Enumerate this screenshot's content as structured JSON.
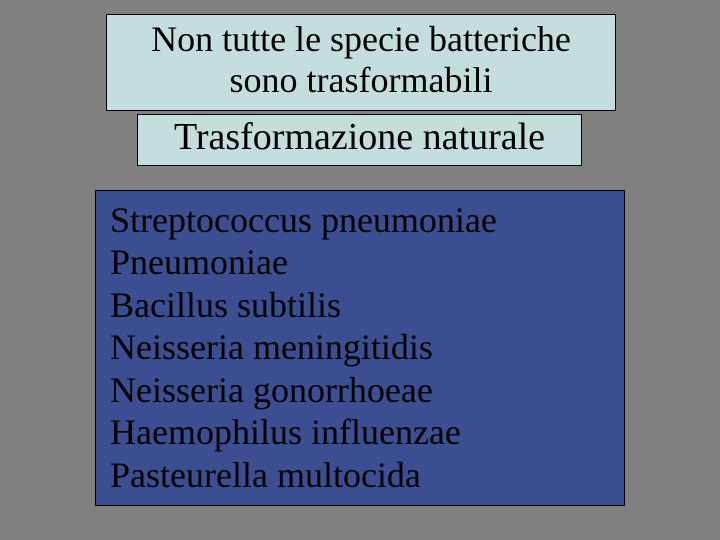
{
  "colors": {
    "background": "#808080",
    "box_light": "#c4dddd",
    "box_dark": "#3b4e91",
    "border": "#000000",
    "text": "#000000"
  },
  "typography": {
    "font_family": "Times New Roman",
    "title_fontsize": 36,
    "subtitle_fontsize": 38,
    "list_fontsize": 36
  },
  "title": {
    "line1": "Non tutte le specie batteriche",
    "line2": "sono trasformabili"
  },
  "subtitle": "Trasformazione naturale",
  "species": [
    "Streptococcus pneumoniae",
    "Pneumoniae",
    "Bacillus subtilis",
    "Neisseria meningitidis",
    "Neisseria gonorrhoeae",
    "Haemophilus influenzae",
    "Pasteurella multocida"
  ]
}
